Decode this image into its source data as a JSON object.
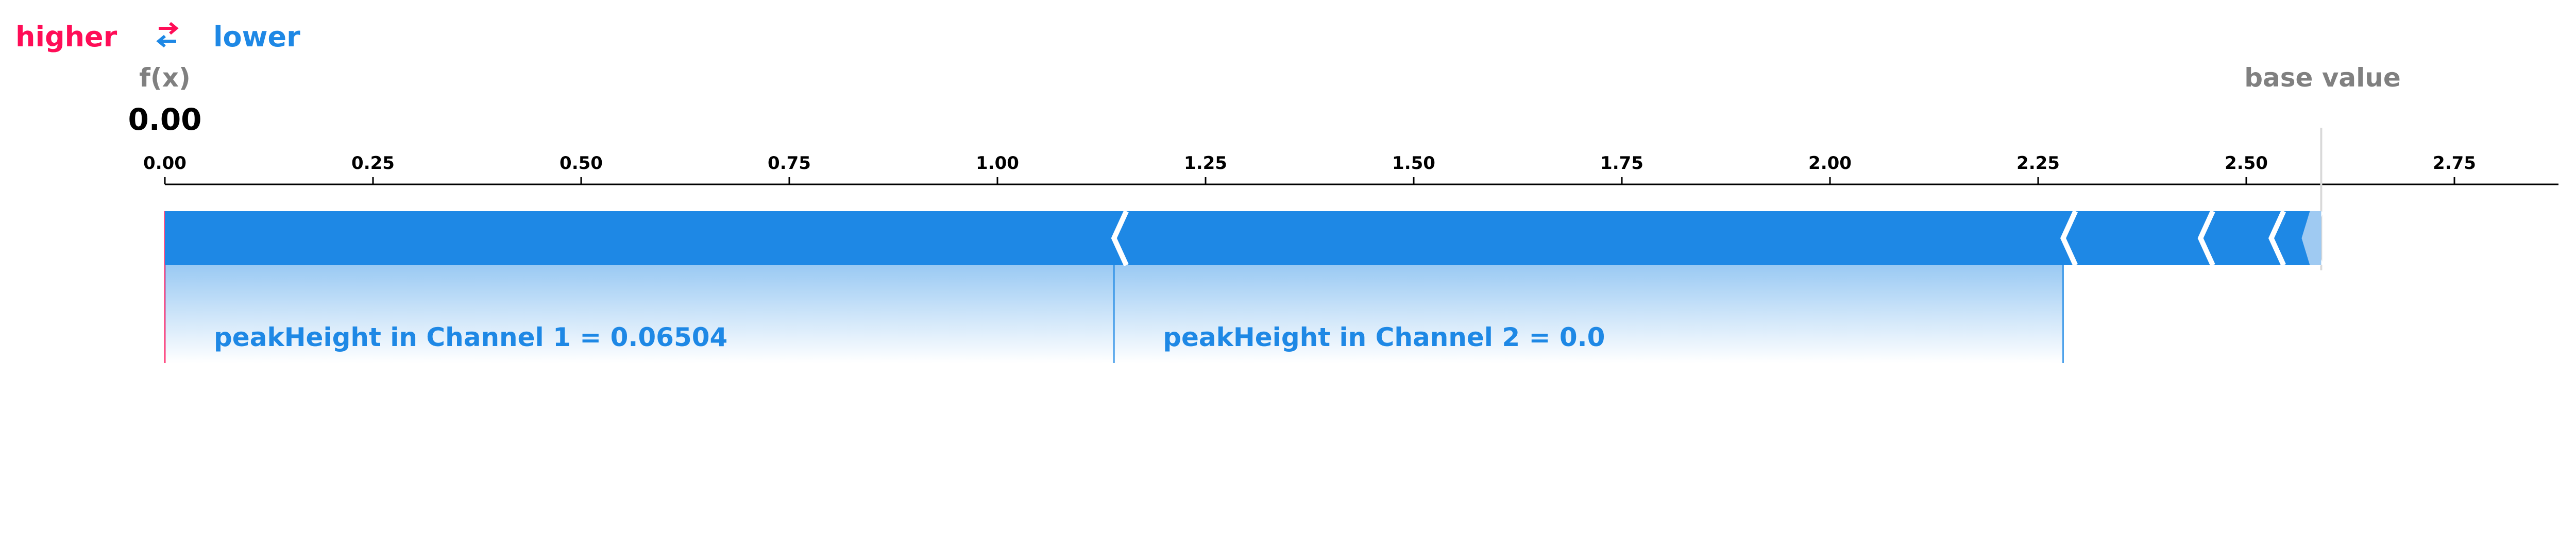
{
  "legend": {
    "higher_label": "higher",
    "lower_label": "lower",
    "higher_color": "#ff0d57",
    "lower_color": "#1e88e5",
    "swap_icon": "swap-arrows-icon"
  },
  "output": {
    "fx_label": "f(x)",
    "fx_value": "0.00",
    "base_value_label": "base value"
  },
  "chart_data": {
    "type": "force",
    "x_range": [
      0.0,
      2.875
    ],
    "ticks": [
      "0.00",
      "0.25",
      "0.50",
      "0.75",
      "1.00",
      "1.25",
      "1.50",
      "1.75",
      "2.00",
      "2.25",
      "2.50",
      "2.75"
    ],
    "tick_values": [
      0.0,
      0.25,
      0.5,
      0.75,
      1.0,
      1.25,
      1.5,
      1.75,
      2.0,
      2.25,
      2.5,
      2.75
    ],
    "output_value": 0.0,
    "base_value": 2.59,
    "segments": [
      {
        "start": 0.0,
        "end": 1.14,
        "label": "peakHeight in Channel 1 = 0.06504"
      },
      {
        "start": 1.14,
        "end": 2.28,
        "label": "peakHeight in Channel 2 = 0.0"
      },
      {
        "start": 2.28,
        "end": 2.445,
        "label": ""
      },
      {
        "start": 2.445,
        "end": 2.53,
        "label": ""
      },
      {
        "start": 2.53,
        "end": 2.575,
        "label": ""
      },
      {
        "start": 2.575,
        "end": 2.59,
        "label": ""
      }
    ]
  }
}
